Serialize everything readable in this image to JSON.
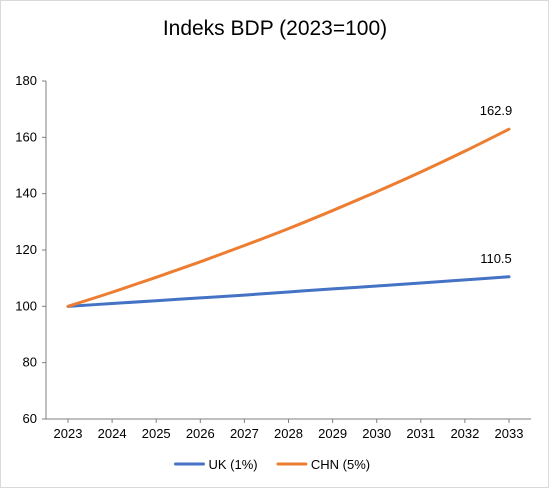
{
  "chart_data": {
    "type": "line",
    "title": "Indeks BDP (2023=100)",
    "xlabel": "",
    "ylabel": "",
    "x": [
      "2023",
      "2024",
      "2025",
      "2026",
      "2027",
      "2028",
      "2029",
      "2030",
      "2031",
      "2032",
      "2033"
    ],
    "ylim": [
      60,
      180
    ],
    "yticks": [
      "60",
      "80",
      "100",
      "120",
      "140",
      "160",
      "180"
    ],
    "grid": false,
    "legend": "bottom",
    "series": [
      {
        "name": "UK (1%)",
        "color": "#4472c4",
        "values": [
          100,
          101,
          102,
          103,
          104,
          105.1,
          106.2,
          107.2,
          108.3,
          109.4,
          110.5
        ],
        "end_label": "110.5"
      },
      {
        "name": "CHN (5%)",
        "color": "#ed7d31",
        "values": [
          100,
          105,
          110.3,
          115.8,
          121.6,
          127.6,
          134,
          140.7,
          147.7,
          155.1,
          162.9
        ],
        "end_label": "162.9"
      }
    ]
  }
}
